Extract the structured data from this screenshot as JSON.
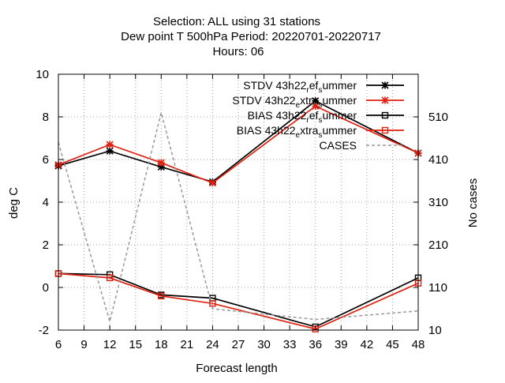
{
  "title_lines": [
    "Selection: ALL using    31 stations",
    "Dew point T 500hPa   Period: 20220701-20220717",
    "Hours:  06"
  ],
  "chart_data": {
    "type": "line",
    "xlabel": "Forecast length",
    "ylabel": "deg C",
    "y2label": "No cases",
    "xlim": [
      6,
      48
    ],
    "ylim": [
      -2,
      10
    ],
    "y2lim": [
      10,
      610
    ],
    "xticks": [
      6,
      9,
      12,
      15,
      18,
      21,
      24,
      27,
      30,
      33,
      36,
      39,
      42,
      45,
      48
    ],
    "yticks": [
      -2,
      0,
      2,
      4,
      6,
      8,
      10
    ],
    "y2ticks": [
      10,
      110,
      210,
      310,
      410,
      510
    ],
    "grid": true,
    "legend_position": "top-right",
    "x": [
      6,
      12,
      18,
      24,
      36,
      48
    ],
    "series": [
      {
        "name": "STDV 43h22_ref_summer",
        "legend_parts": [
          "STDV 43h22",
          "r",
          "ef",
          "s",
          "ummer"
        ],
        "axis": "y",
        "color": "#000000",
        "marker": "x",
        "values": [
          5.7,
          6.4,
          5.65,
          4.95,
          8.75,
          6.3
        ]
      },
      {
        "name": "STDV 43h22_extra_summer",
        "legend_parts": [
          "STDV 43h22",
          "e",
          "xtra",
          "s",
          "ummer"
        ],
        "axis": "y",
        "color": "#e02010",
        "marker": "x",
        "values": [
          5.75,
          6.7,
          5.85,
          4.9,
          8.5,
          6.3
        ]
      },
      {
        "name": "BIAS 43h22_ref_summer",
        "legend_parts": [
          "BIAS 43h22",
          "r",
          "ef",
          "s",
          "ummer"
        ],
        "axis": "y",
        "color": "#000000",
        "marker": "square",
        "values": [
          0.65,
          0.6,
          -0.35,
          -0.5,
          -1.85,
          0.45
        ]
      },
      {
        "name": "BIAS 43h22_extra_summer",
        "legend_parts": [
          "BIAS 43h22",
          "e",
          "xtra",
          "s",
          "ummer"
        ],
        "axis": "y",
        "color": "#e02010",
        "marker": "square",
        "values": [
          0.65,
          0.45,
          -0.4,
          -0.75,
          -1.95,
          0.2
        ]
      },
      {
        "name": "CASES",
        "legend_parts": [
          "CASES"
        ],
        "axis": "y2",
        "color": "#999999",
        "marker": "none",
        "dashed": true,
        "values": [
          450,
          30,
          520,
          60,
          35,
          55
        ]
      }
    ]
  }
}
